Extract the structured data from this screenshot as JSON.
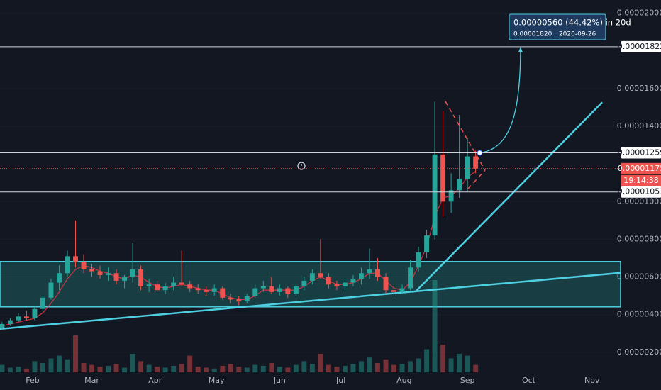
{
  "chart_data": {
    "type": "candlestick",
    "x": [
      17,
      21,
      25,
      29,
      33,
      37,
      41,
      45,
      49,
      53,
      57,
      61,
      65,
      69,
      73,
      77,
      81,
      85,
      89,
      93,
      97,
      101,
      105,
      109,
      113,
      117,
      121,
      125,
      129,
      133,
      137,
      141,
      145,
      149,
      153,
      157,
      161,
      165,
      169,
      173,
      177,
      181,
      185,
      189,
      193,
      197,
      201,
      205,
      209,
      213,
      217,
      221,
      225,
      229,
      233,
      237,
      241,
      245,
      249
    ],
    "open": [
      3.3e-06,
      3.5e-06,
      3.7e-06,
      3.9e-06,
      3.8e-06,
      4.3e-06,
      4.9e-06,
      5.7e-06,
      6.2e-06,
      7.1e-06,
      6.8e-06,
      6.4e-06,
      6.3e-06,
      6.1e-06,
      6.2e-06,
      5.8e-06,
      6e-06,
      6.4e-06,
      5.5e-06,
      5.6e-06,
      5.3e-06,
      5.5e-06,
      5.7e-06,
      5.6e-06,
      5.4e-06,
      5.3e-06,
      5.2e-06,
      5.4e-06,
      4.9e-06,
      4.8e-06,
      4.7e-06,
      5e-06,
      5.4e-06,
      5.5e-06,
      5.2e-06,
      5.4e-06,
      5.1e-06,
      5.5e-06,
      5.8e-06,
      6.2e-06,
      6e-06,
      5.6e-06,
      5.5e-06,
      5.7e-06,
      5.9e-06,
      6.2e-06,
      6.4e-06,
      6e-06,
      5.3e-06,
      5.2e-06,
      5.4e-06,
      6.5e-06,
      7.3e-06,
      8.2e-06,
      1.25e-05,
      1e-05,
      1.06e-05,
      1.12e-05,
      1.24e-05
    ],
    "high": [
      3.6e-06,
      3.8e-06,
      4.1e-06,
      4.2e-06,
      4.4e-06,
      5e-06,
      5.9e-06,
      6.6e-06,
      7.4e-06,
      9e-06,
      7.2e-06,
      6.7e-06,
      6.6e-06,
      6.5e-06,
      6.4e-06,
      6.1e-06,
      7.8e-06,
      6.6e-06,
      5.9e-06,
      5.8e-06,
      5.7e-06,
      6e-06,
      7.4e-06,
      5.8e-06,
      5.6e-06,
      5.5e-06,
      5.6e-06,
      5.5e-06,
      5.1e-06,
      5e-06,
      5.1e-06,
      5.6e-06,
      5.8e-06,
      6e-06,
      5.6e-06,
      5.5e-06,
      5.6e-06,
      6e-06,
      6.4e-06,
      8e-06,
      6.2e-06,
      5.8e-06,
      5.9e-06,
      6.1e-06,
      6.5e-06,
      7.5e-06,
      7e-06,
      6.2e-06,
      5.6e-06,
      5.6e-06,
      6.9e-06,
      7.6e-06,
      8.5e-06,
      1.53e-05,
      1.48e-05,
      1.15e-05,
      1.46e-05,
      1.34e-05,
      1.27e-05
    ],
    "low": [
      3.2e-06,
      3.4e-06,
      3.6e-06,
      3.7e-06,
      3.7e-06,
      4.2e-06,
      4.8e-06,
      5.3e-06,
      6e-06,
      6.5e-06,
      6.2e-06,
      6e-06,
      5.9e-06,
      5.8e-06,
      5.6e-06,
      5.4e-06,
      5.7e-06,
      5.3e-06,
      5.2e-06,
      5.2e-06,
      5.1e-06,
      5.3e-06,
      5.5e-06,
      5.2e-06,
      5.1e-06,
      5e-06,
      5e-06,
      4.8e-06,
      4.6e-06,
      4.5e-06,
      4.6e-06,
      4.9e-06,
      5.2e-06,
      5.1e-06,
      5e-06,
      4.9e-06,
      5e-06,
      5.3e-06,
      5.6e-06,
      5.9e-06,
      5.4e-06,
      5.3e-06,
      5.3e-06,
      5.5e-06,
      5.6e-06,
      5.9e-06,
      5.8e-06,
      5.1e-06,
      5e-06,
      5.1e-06,
      5.3e-06,
      6.3e-06,
      7e-06,
      8e-06,
      9.2e-06,
      9.4e-06,
      1.02e-05,
      1.05e-05,
      1.15e-05
    ],
    "close": [
      3.5e-06,
      3.7e-06,
      3.9e-06,
      3.8e-06,
      4.3e-06,
      4.9e-06,
      5.7e-06,
      6.2e-06,
      7.1e-06,
      6.8e-06,
      6.4e-06,
      6.3e-06,
      6.1e-06,
      6.2e-06,
      5.8e-06,
      6e-06,
      6.4e-06,
      5.5e-06,
      5.6e-06,
      5.3e-06,
      5.5e-06,
      5.7e-06,
      5.6e-06,
      5.4e-06,
      5.3e-06,
      5.2e-06,
      5.4e-06,
      4.9e-06,
      4.8e-06,
      4.7e-06,
      5e-06,
      5.4e-06,
      5.5e-06,
      5.2e-06,
      5.4e-06,
      5.1e-06,
      5.5e-06,
      5.8e-06,
      6.2e-06,
      6e-06,
      5.6e-06,
      5.5e-06,
      5.7e-06,
      5.9e-06,
      6.2e-06,
      6.4e-06,
      6e-06,
      5.3e-06,
      5.2e-06,
      5.4e-06,
      6.5e-06,
      7.3e-06,
      8.2e-06,
      1.25e-05,
      1e-05,
      1.06e-05,
      1.12e-05,
      1.24e-05,
      1.175e-05
    ],
    "up_color": "#26a69a",
    "down_color": "#ef5350",
    "volume": [
      8,
      5,
      6,
      4,
      12,
      10,
      15,
      18,
      14,
      40,
      10,
      8,
      6,
      7,
      9,
      5,
      20,
      12,
      8,
      6,
      5,
      7,
      9,
      18,
      6,
      5,
      4,
      7,
      9,
      6,
      5,
      8,
      7,
      10,
      6,
      5,
      8,
      12,
      9,
      20,
      8,
      6,
      7,
      9,
      12,
      16,
      10,
      14,
      8,
      9,
      12,
      15,
      25,
      100,
      30,
      15,
      20,
      18,
      8
    ],
    "volume_ylim": [
      0,
      100
    ],
    "ma": {
      "color": "#f23645",
      "values": [
        3.4e-06,
        3.5e-06,
        3.6e-06,
        3.7e-06,
        3.8e-06,
        4.1e-06,
        4.6e-06,
        5.2e-06,
        5.9e-06,
        6.4e-06,
        6.6e-06,
        6.5e-06,
        6.3e-06,
        6.2e-06,
        6e-06,
        5.9e-06,
        6.1e-06,
        6e-06,
        5.7e-06,
        5.5e-06,
        5.4e-06,
        5.5e-06,
        5.6e-06,
        5.5e-06,
        5.4e-06,
        5.3e-06,
        5.3e-06,
        5.1e-06,
        4.9e-06,
        4.8e-06,
        4.8e-06,
        5e-06,
        5.3e-06,
        5.3e-06,
        5.3e-06,
        5.3e-06,
        5.3e-06,
        5.5e-06,
        5.8e-06,
        6e-06,
        5.8e-06,
        5.6e-06,
        5.6e-06,
        5.7e-06,
        5.9e-06,
        6.2e-06,
        6.2e-06,
        5.8e-06,
        5.4e-06,
        5.3e-06,
        5.7e-06,
        6.6e-06,
        7.6e-06,
        9.2e-06,
        1.02e-05,
        1.03e-05,
        1.07e-05,
        1.13e-05,
        1.16e-05
      ]
    },
    "xlim": [
      16,
      320
    ],
    "xticks": [
      {
        "value": 32,
        "label": "Feb"
      },
      {
        "value": 61,
        "label": "Mar"
      },
      {
        "value": 92,
        "label": "Apr"
      },
      {
        "value": 122,
        "label": "May"
      },
      {
        "value": 153,
        "label": "Jun"
      },
      {
        "value": 183,
        "label": "Jul"
      },
      {
        "value": 214,
        "label": "Aug"
      },
      {
        "value": 245,
        "label": "Sep"
      },
      {
        "value": 275,
        "label": "Oct"
      },
      {
        "value": 306,
        "label": "Nov"
      }
    ],
    "ylim": [
      9.4e-07,
      2.07e-05
    ],
    "yticks": [
      {
        "value": 2e-06,
        "label": "0.00000200"
      },
      {
        "value": 4e-06,
        "label": "0.00000400"
      },
      {
        "value": 6e-06,
        "label": "0.00000600"
      },
      {
        "value": 8e-06,
        "label": "0.00000800"
      },
      {
        "value": 1e-05,
        "label": "0.00001000"
      },
      {
        "value": 1.4e-05,
        "label": "0.00001400"
      },
      {
        "value": 1.6e-05,
        "label": "0.00001600"
      },
      {
        "value": 2e-05,
        "label": "0.00002000"
      }
    ],
    "hlines": [
      {
        "value": 1.822e-05,
        "label": "0.00001822"
      },
      {
        "value": 1.259e-05,
        "label": "0.00001259"
      },
      {
        "value": 1.051e-05,
        "label": "0.00001051"
      }
    ],
    "zone": [
      4.41e-06,
      6.82e-06
    ],
    "trendlines": [
      {
        "x": [
          16,
          320
        ],
        "y": [
          3.24e-06,
          6.22e-06
        ]
      },
      {
        "x": [
          220,
          311
        ],
        "y": [
          5.27e-06,
          1.527e-05
        ]
      }
    ],
    "last_price": {
      "value": 1.175e-05,
      "label": "0.00001175",
      "countdown": "19:14:38"
    },
    "projection": {
      "text": "0.00000560 (44.42%) in 20d",
      "price": "0.00001820",
      "date": "2020-09-26",
      "x": [
        251,
        271
      ],
      "y": [
        1.259e-05,
        1.82e-05
      ]
    }
  }
}
